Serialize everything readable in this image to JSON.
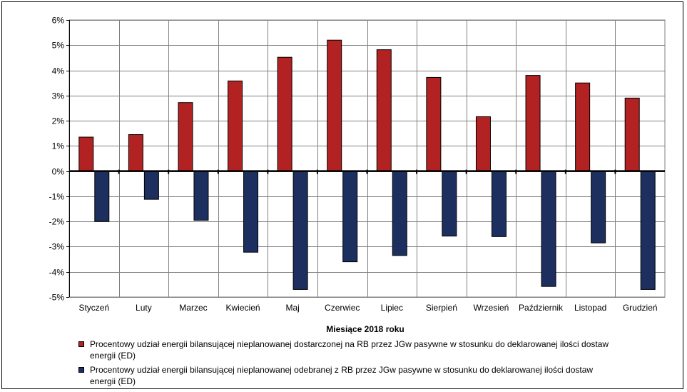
{
  "chart_data": {
    "type": "bar",
    "categories": [
      "Styczeń",
      "Luty",
      "Marzec",
      "Kwiecień",
      "Maj",
      "Czerwiec",
      "Lipiec",
      "Sierpień",
      "Wrzesień",
      "Październik",
      "Listopad",
      "Grudzień"
    ],
    "series": [
      {
        "name": "Procentowy udział energii bilansującej nieplanowanej dostarczonej na RB przez JGw pasywne w stosunku do deklarowanej ilości dostaw energii (ED)",
        "color": "#b22222",
        "values": [
          1.35,
          1.45,
          2.72,
          3.58,
          4.52,
          5.2,
          4.82,
          3.72,
          2.16,
          3.8,
          3.5,
          2.9
        ]
      },
      {
        "name": "Procentowy udział energii bilansującej nieplanowanej odebranej z RB przez JGw pasywne w stosunku do deklarowanej ilości dostaw energii (ED)",
        "color": "#1c2f5e",
        "values": [
          -2.0,
          -1.12,
          -1.95,
          -3.22,
          -4.7,
          -3.6,
          -3.35,
          -2.58,
          -2.6,
          -4.58,
          -2.85,
          -4.7
        ]
      }
    ],
    "xlabel": "Miesiące 2018  roku",
    "ylabel": "",
    "ylim": [
      -5,
      6
    ],
    "yticks": [
      6,
      5,
      4,
      3,
      2,
      1,
      0,
      -1,
      -2,
      -3,
      -4,
      -5
    ],
    "ytick_labels": [
      "6%",
      "5%",
      "4%",
      "3%",
      "2%",
      "1%",
      "0%",
      "-1%",
      "-2%",
      "-3%",
      "-4%",
      "-5%"
    ],
    "grid": true,
    "legend_position": "bottom"
  }
}
